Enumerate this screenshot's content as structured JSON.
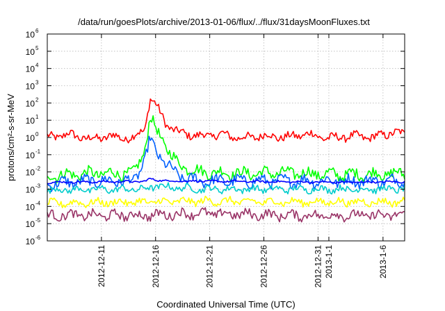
{
  "chart_data": {
    "type": "line",
    "title": "/data/run/goesPlots/archive/2013-01-06/flux/../flux/31daysMoonFluxes.txt",
    "xlabel": "Coordinated Universal Time (UTC)",
    "ylabel": "protons/cm²-s-sr-MeV",
    "yscale": "log",
    "ylim_exponent": [
      -6,
      6
    ],
    "xlim": [
      "2012-12-06",
      "2013-01-08"
    ],
    "yticks": [
      {
        "base": "10",
        "exp": "-6"
      },
      {
        "base": "10",
        "exp": "-5"
      },
      {
        "base": "10",
        "exp": "-4"
      },
      {
        "base": "10",
        "exp": "-3"
      },
      {
        "base": "10",
        "exp": "-2"
      },
      {
        "base": "10",
        "exp": "-1"
      },
      {
        "base": "10",
        "exp": "0"
      },
      {
        "base": "10",
        "exp": "1"
      },
      {
        "base": "10",
        "exp": "2"
      },
      {
        "base": "10",
        "exp": "3"
      },
      {
        "base": "10",
        "exp": "4"
      },
      {
        "base": "10",
        "exp": "5"
      },
      {
        "base": "10",
        "exp": "6"
      }
    ],
    "xticks": [
      {
        "label": "2012-12-11",
        "date": "2012-12-11"
      },
      {
        "label": "2012-12-16",
        "date": "2012-12-16"
      },
      {
        "label": "2012-12-21",
        "date": "2012-12-21"
      },
      {
        "label": "2012-12-26",
        "date": "2012-12-26"
      },
      {
        "label": "2012-12-31",
        "date": "2012-12-31"
      },
      {
        "label": "2013-1-1",
        "date": "2013-01-01"
      },
      {
        "label": "2013-1-6",
        "date": "2013-01-06"
      }
    ],
    "grid": true,
    "legend": "none",
    "series": [
      {
        "color": "#ff0000",
        "x": [
          "2012-12-06",
          "2012-12-08",
          "2012-12-10",
          "2012-12-12",
          "2012-12-13",
          "2012-12-14",
          "2012-12-15",
          "2012-12-15.5",
          "2012-12-16",
          "2012-12-17",
          "2012-12-18",
          "2012-12-20",
          "2012-12-22",
          "2012-12-24",
          "2012-12-26",
          "2012-12-28",
          "2012-12-30",
          "2013-01-01",
          "2013-01-03",
          "2013-01-05",
          "2013-01-07",
          "2013-01-08"
        ],
        "y": [
          1.0,
          1.5,
          0.8,
          1.2,
          0.9,
          1.0,
          3.0,
          200,
          80,
          6,
          2.0,
          1.2,
          1.5,
          0.9,
          1.3,
          1.0,
          1.6,
          0.9,
          1.2,
          1.0,
          2.0,
          1.5
        ],
        "noise": 0.22
      },
      {
        "color": "#00ff00",
        "x": [
          "2012-12-06",
          "2012-12-10",
          "2012-12-14",
          "2012-12-15",
          "2012-12-15.5",
          "2012-12-16",
          "2012-12-17",
          "2012-12-18",
          "2012-12-20",
          "2012-12-24",
          "2012-12-28",
          "2013-01-02",
          "2013-01-08"
        ],
        "y": [
          0.006,
          0.008,
          0.008,
          0.2,
          15,
          3,
          0.3,
          0.03,
          0.01,
          0.008,
          0.009,
          0.007,
          0.008
        ],
        "noise": 0.3
      },
      {
        "color": "#0060ff",
        "x": [
          "2012-12-06",
          "2012-12-10",
          "2012-12-14",
          "2012-12-15",
          "2012-12-15.5",
          "2012-12-16",
          "2012-12-17",
          "2012-12-18",
          "2012-12-20",
          "2012-12-24",
          "2012-12-28",
          "2013-01-02",
          "2013-01-08"
        ],
        "y": [
          0.002,
          0.003,
          0.003,
          0.05,
          0.8,
          0.15,
          0.03,
          0.006,
          0.003,
          0.003,
          0.003,
          0.003,
          0.003
        ],
        "noise": 0.3
      },
      {
        "color": "#0000ff",
        "x": [
          "2012-12-06",
          "2012-12-15",
          "2012-12-15.5",
          "2012-12-16",
          "2012-12-17",
          "2012-12-24",
          "2013-01-02",
          "2013-01-08"
        ],
        "y": [
          0.0025,
          0.0028,
          0.004,
          0.0035,
          0.003,
          0.0028,
          0.0025,
          0.0027
        ],
        "noise": 0.05
      },
      {
        "color": "#00cccc",
        "x": [
          "2012-12-06",
          "2012-12-15",
          "2012-12-16",
          "2012-12-20",
          "2012-12-28",
          "2013-01-08"
        ],
        "y": [
          0.0009,
          0.001,
          0.0015,
          0.001,
          0.001,
          0.001
        ],
        "noise": 0.18
      },
      {
        "color": "#ffff00",
        "x": [
          "2012-12-06",
          "2012-12-15",
          "2012-12-20",
          "2012-12-28",
          "2013-01-08"
        ],
        "y": [
          0.00015,
          0.00018,
          0.0002,
          0.00018,
          0.00018
        ],
        "noise": 0.2
      },
      {
        "color": "#993366",
        "x": [
          "2012-12-06",
          "2012-12-15",
          "2012-12-20",
          "2012-12-28",
          "2013-01-08"
        ],
        "y": [
          3e-05,
          3e-05,
          4e-05,
          3e-05,
          3e-05
        ],
        "noise": 0.25
      }
    ]
  }
}
